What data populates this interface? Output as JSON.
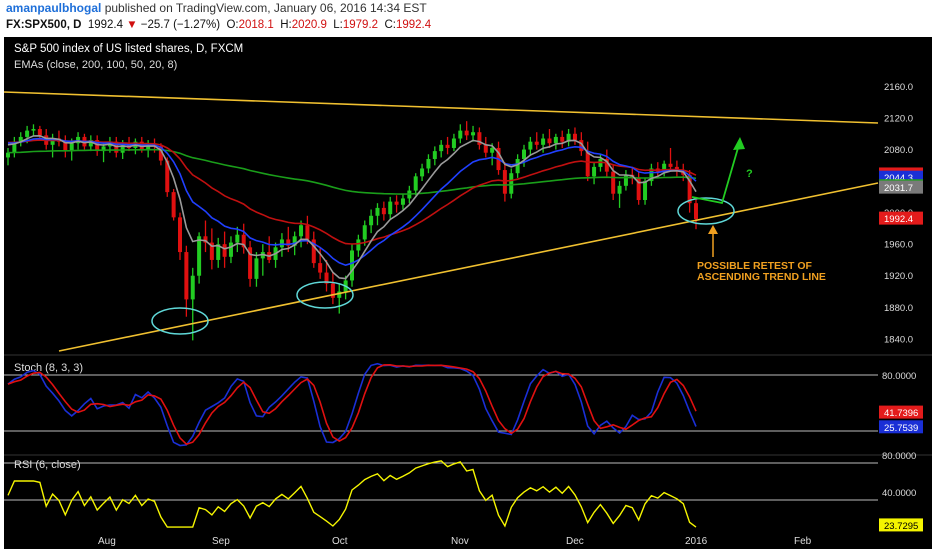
{
  "header": {
    "author": "amanpaulbhogal",
    "published_text": "published on TradingView.com, January 06, 2016 14:34 EST",
    "symbol": "FX:SPX500, D",
    "last": "1992.4",
    "change_arrow": "▼",
    "change": "−25.7 (−1.27%)",
    "open_label": "O:",
    "open": "2018.1",
    "high_label": "H:",
    "high": "2020.9",
    "low_label": "L:",
    "low": "1979.2",
    "close_label": "C:",
    "close": "1992.4"
  },
  "panel": {
    "title": "S&P 500 index of US listed shares, D, FXCM",
    "ema_label": "EMAs (close, 200, 100, 50, 20, 8)",
    "annotation_line1": "POSSIBLE RETEST OF",
    "annotation_line2": "ASCENDING TREND LINE",
    "question_mark": "?"
  },
  "price_axis": {
    "ticks": [
      "2160.0",
      "2120.0",
      "2080.0",
      "2040.0",
      "2000.0",
      "1960.0",
      "1920.0",
      "1880.0",
      "1840.0"
    ],
    "badges": [
      {
        "label": "2048.4",
        "bg": "#e31b1b",
        "fg": "#ffffff"
      },
      {
        "label": "2044.3",
        "bg": "#1a2fd6",
        "fg": "#ffffff"
      },
      {
        "label": "2033.5",
        "bg": "#1f9e1f",
        "fg": "#ffffff"
      },
      {
        "label": "2031.7",
        "bg": "#7a7a7a",
        "fg": "#ffffff"
      },
      {
        "label": "1992.4",
        "bg": "#e31b1b",
        "fg": "#ffffff"
      }
    ]
  },
  "stoch": {
    "label": "Stoch (8, 3, 3)",
    "ticks": [
      "80.0000"
    ],
    "badges": [
      {
        "label": "41.7396",
        "bg": "#e31b1b",
        "fg": "#ffffff"
      },
      {
        "label": "25.7539",
        "bg": "#1a2fd6",
        "fg": "#ffffff"
      }
    ]
  },
  "rsi": {
    "label": "RSI (6, close)",
    "ticks": [
      "80.0000",
      "40.0000"
    ],
    "badges": [
      {
        "label": "23.7295",
        "bg": "#f5f500",
        "fg": "#000000"
      }
    ]
  },
  "time_axis": [
    "Aug",
    "Sep",
    "Oct",
    "Nov",
    "Dec",
    "2016",
    "Feb"
  ],
  "colors": {
    "background": "#000000",
    "bull": "#22cc22",
    "bear": "#e01010",
    "trendline": "#f0c030",
    "ellipse": "#5fd8d8",
    "annotation": "#f0a020",
    "green_arrow": "#22cc22",
    "ema200": "#1a9e1a",
    "ema100": "#c01010",
    "ema50": "#2040ff",
    "ema20": "#9a9a9a",
    "stoch_k": "#1a2fd6",
    "stoch_d": "#e01010",
    "rsi": "#f5f500"
  },
  "chart_data": {
    "type": "candlestick",
    "ylim": [
      1822,
      2172
    ],
    "candles_summary": [
      {
        "o": 2070,
        "h": 2082,
        "l": 2060,
        "c": 2076
      },
      {
        "o": 2076,
        "h": 2096,
        "l": 2070,
        "c": 2090
      },
      {
        "o": 2090,
        "h": 2102,
        "l": 2084,
        "c": 2096
      },
      {
        "o": 2096,
        "h": 2110,
        "l": 2088,
        "c": 2104
      },
      {
        "o": 2104,
        "h": 2112,
        "l": 2098,
        "c": 2106
      },
      {
        "o": 2106,
        "h": 2110,
        "l": 2092,
        "c": 2098
      },
      {
        "o": 2098,
        "h": 2106,
        "l": 2080,
        "c": 2086
      },
      {
        "o": 2086,
        "h": 2100,
        "l": 2070,
        "c": 2094
      },
      {
        "o": 2094,
        "h": 2104,
        "l": 2084,
        "c": 2090
      },
      {
        "o": 2090,
        "h": 2098,
        "l": 2070,
        "c": 2078
      },
      {
        "o": 2078,
        "h": 2094,
        "l": 2066,
        "c": 2088
      },
      {
        "o": 2088,
        "h": 2102,
        "l": 2080,
        "c": 2096
      },
      {
        "o": 2096,
        "h": 2100,
        "l": 2080,
        "c": 2084
      },
      {
        "o": 2084,
        "h": 2098,
        "l": 2078,
        "c": 2092
      },
      {
        "o": 2092,
        "h": 2098,
        "l": 2072,
        "c": 2078
      },
      {
        "o": 2078,
        "h": 2090,
        "l": 2064,
        "c": 2084
      },
      {
        "o": 2084,
        "h": 2096,
        "l": 2076,
        "c": 2090
      },
      {
        "o": 2090,
        "h": 2096,
        "l": 2070,
        "c": 2076
      },
      {
        "o": 2076,
        "h": 2092,
        "l": 2068,
        "c": 2086
      },
      {
        "o": 2086,
        "h": 2096,
        "l": 2078,
        "c": 2082
      },
      {
        "o": 2082,
        "h": 2094,
        "l": 2074,
        "c": 2090
      },
      {
        "o": 2090,
        "h": 2096,
        "l": 2076,
        "c": 2080
      },
      {
        "o": 2080,
        "h": 2092,
        "l": 2070,
        "c": 2086
      },
      {
        "o": 2086,
        "h": 2094,
        "l": 2076,
        "c": 2084
      },
      {
        "o": 2084,
        "h": 2088,
        "l": 2060,
        "c": 2066
      },
      {
        "o": 2066,
        "h": 2070,
        "l": 2020,
        "c": 2026
      },
      {
        "o": 2026,
        "h": 2030,
        "l": 1990,
        "c": 1994
      },
      {
        "o": 1994,
        "h": 2000,
        "l": 1940,
        "c": 1950
      },
      {
        "o": 1950,
        "h": 1958,
        "l": 1868,
        "c": 1890
      },
      {
        "o": 1890,
        "h": 1930,
        "l": 1838,
        "c": 1920
      },
      {
        "o": 1920,
        "h": 1975,
        "l": 1910,
        "c": 1970
      },
      {
        "o": 1970,
        "h": 1990,
        "l": 1950,
        "c": 1962
      },
      {
        "o": 1962,
        "h": 1980,
        "l": 1928,
        "c": 1940
      },
      {
        "o": 1940,
        "h": 1968,
        "l": 1930,
        "c": 1960
      },
      {
        "o": 1960,
        "h": 1976,
        "l": 1930,
        "c": 1944
      },
      {
        "o": 1944,
        "h": 1970,
        "l": 1936,
        "c": 1962
      },
      {
        "o": 1962,
        "h": 1982,
        "l": 1950,
        "c": 1972
      },
      {
        "o": 1972,
        "h": 1986,
        "l": 1948,
        "c": 1956
      },
      {
        "o": 1956,
        "h": 1964,
        "l": 1906,
        "c": 1916
      },
      {
        "o": 1916,
        "h": 1950,
        "l": 1906,
        "c": 1942
      },
      {
        "o": 1942,
        "h": 1960,
        "l": 1920,
        "c": 1950
      },
      {
        "o": 1950,
        "h": 1970,
        "l": 1936,
        "c": 1940
      },
      {
        "o": 1940,
        "h": 1962,
        "l": 1930,
        "c": 1956
      },
      {
        "o": 1956,
        "h": 1974,
        "l": 1944,
        "c": 1966
      },
      {
        "o": 1966,
        "h": 1982,
        "l": 1950,
        "c": 1958
      },
      {
        "o": 1958,
        "h": 1976,
        "l": 1946,
        "c": 1970
      },
      {
        "o": 1970,
        "h": 1990,
        "l": 1956,
        "c": 1984
      },
      {
        "o": 1984,
        "h": 1996,
        "l": 1960,
        "c": 1966
      },
      {
        "o": 1966,
        "h": 1976,
        "l": 1930,
        "c": 1936
      },
      {
        "o": 1936,
        "h": 1956,
        "l": 1916,
        "c": 1924
      },
      {
        "o": 1924,
        "h": 1940,
        "l": 1900,
        "c": 1910
      },
      {
        "o": 1910,
        "h": 1924,
        "l": 1884,
        "c": 1892
      },
      {
        "o": 1892,
        "h": 1910,
        "l": 1872,
        "c": 1900
      },
      {
        "o": 1900,
        "h": 1920,
        "l": 1890,
        "c": 1914
      },
      {
        "o": 1914,
        "h": 1960,
        "l": 1906,
        "c": 1952
      },
      {
        "o": 1952,
        "h": 1972,
        "l": 1944,
        "c": 1966
      },
      {
        "o": 1966,
        "h": 1990,
        "l": 1958,
        "c": 1984
      },
      {
        "o": 1984,
        "h": 2004,
        "l": 1974,
        "c": 1996
      },
      {
        "o": 1996,
        "h": 2012,
        "l": 1984,
        "c": 2006
      },
      {
        "o": 2006,
        "h": 2014,
        "l": 1990,
        "c": 1998
      },
      {
        "o": 1998,
        "h": 2020,
        "l": 1992,
        "c": 2014
      },
      {
        "o": 2014,
        "h": 2022,
        "l": 2000,
        "c": 2010
      },
      {
        "o": 2010,
        "h": 2024,
        "l": 2004,
        "c": 2018
      },
      {
        "o": 2018,
        "h": 2034,
        "l": 2012,
        "c": 2028
      },
      {
        "o": 2028,
        "h": 2050,
        "l": 2022,
        "c": 2046
      },
      {
        "o": 2046,
        "h": 2062,
        "l": 2040,
        "c": 2056
      },
      {
        "o": 2056,
        "h": 2074,
        "l": 2050,
        "c": 2068
      },
      {
        "o": 2068,
        "h": 2084,
        "l": 2060,
        "c": 2078
      },
      {
        "o": 2078,
        "h": 2092,
        "l": 2070,
        "c": 2086
      },
      {
        "o": 2086,
        "h": 2096,
        "l": 2074,
        "c": 2082
      },
      {
        "o": 2082,
        "h": 2100,
        "l": 2078,
        "c": 2094
      },
      {
        "o": 2094,
        "h": 2112,
        "l": 2088,
        "c": 2104
      },
      {
        "o": 2104,
        "h": 2116,
        "l": 2092,
        "c": 2098
      },
      {
        "o": 2098,
        "h": 2110,
        "l": 2090,
        "c": 2102
      },
      {
        "o": 2102,
        "h": 2108,
        "l": 2080,
        "c": 2086
      },
      {
        "o": 2086,
        "h": 2096,
        "l": 2070,
        "c": 2076
      },
      {
        "o": 2076,
        "h": 2088,
        "l": 2060,
        "c": 2082
      },
      {
        "o": 2082,
        "h": 2090,
        "l": 2048,
        "c": 2054
      },
      {
        "o": 2054,
        "h": 2064,
        "l": 2014,
        "c": 2024
      },
      {
        "o": 2024,
        "h": 2056,
        "l": 2018,
        "c": 2050
      },
      {
        "o": 2050,
        "h": 2074,
        "l": 2044,
        "c": 2068
      },
      {
        "o": 2068,
        "h": 2086,
        "l": 2058,
        "c": 2080
      },
      {
        "o": 2080,
        "h": 2096,
        "l": 2072,
        "c": 2090
      },
      {
        "o": 2090,
        "h": 2102,
        "l": 2080,
        "c": 2086
      },
      {
        "o": 2086,
        "h": 2100,
        "l": 2076,
        "c": 2094
      },
      {
        "o": 2094,
        "h": 2106,
        "l": 2082,
        "c": 2088
      },
      {
        "o": 2088,
        "h": 2100,
        "l": 2080,
        "c": 2096
      },
      {
        "o": 2096,
        "h": 2104,
        "l": 2082,
        "c": 2090
      },
      {
        "o": 2090,
        "h": 2106,
        "l": 2084,
        "c": 2100
      },
      {
        "o": 2100,
        "h": 2108,
        "l": 2086,
        "c": 2092
      },
      {
        "o": 2092,
        "h": 2102,
        "l": 2072,
        "c": 2078
      },
      {
        "o": 2078,
        "h": 2090,
        "l": 2040,
        "c": 2046
      },
      {
        "o": 2046,
        "h": 2064,
        "l": 2036,
        "c": 2058
      },
      {
        "o": 2058,
        "h": 2074,
        "l": 2052,
        "c": 2068
      },
      {
        "o": 2068,
        "h": 2080,
        "l": 2046,
        "c": 2052
      },
      {
        "o": 2052,
        "h": 2060,
        "l": 2016,
        "c": 2024
      },
      {
        "o": 2024,
        "h": 2040,
        "l": 2006,
        "c": 2034
      },
      {
        "o": 2034,
        "h": 2054,
        "l": 2028,
        "c": 2048
      },
      {
        "o": 2048,
        "h": 2056,
        "l": 2036,
        "c": 2044
      },
      {
        "o": 2044,
        "h": 2052,
        "l": 2010,
        "c": 2016
      },
      {
        "o": 2016,
        "h": 2044,
        "l": 2010,
        "c": 2040
      },
      {
        "o": 2040,
        "h": 2062,
        "l": 2034,
        "c": 2056
      },
      {
        "o": 2056,
        "h": 2064,
        "l": 2044,
        "c": 2052
      },
      {
        "o": 2052,
        "h": 2066,
        "l": 2046,
        "c": 2062
      },
      {
        "o": 2062,
        "h": 2082,
        "l": 2054,
        "c": 2058
      },
      {
        "o": 2058,
        "h": 2066,
        "l": 2046,
        "c": 2054
      },
      {
        "o": 2054,
        "h": 2062,
        "l": 2040,
        "c": 2048
      },
      {
        "o": 2048,
        "h": 2054,
        "l": 2000,
        "c": 2012
      },
      {
        "o": 2012,
        "h": 2020,
        "l": 1979,
        "c": 1992
      }
    ]
  }
}
